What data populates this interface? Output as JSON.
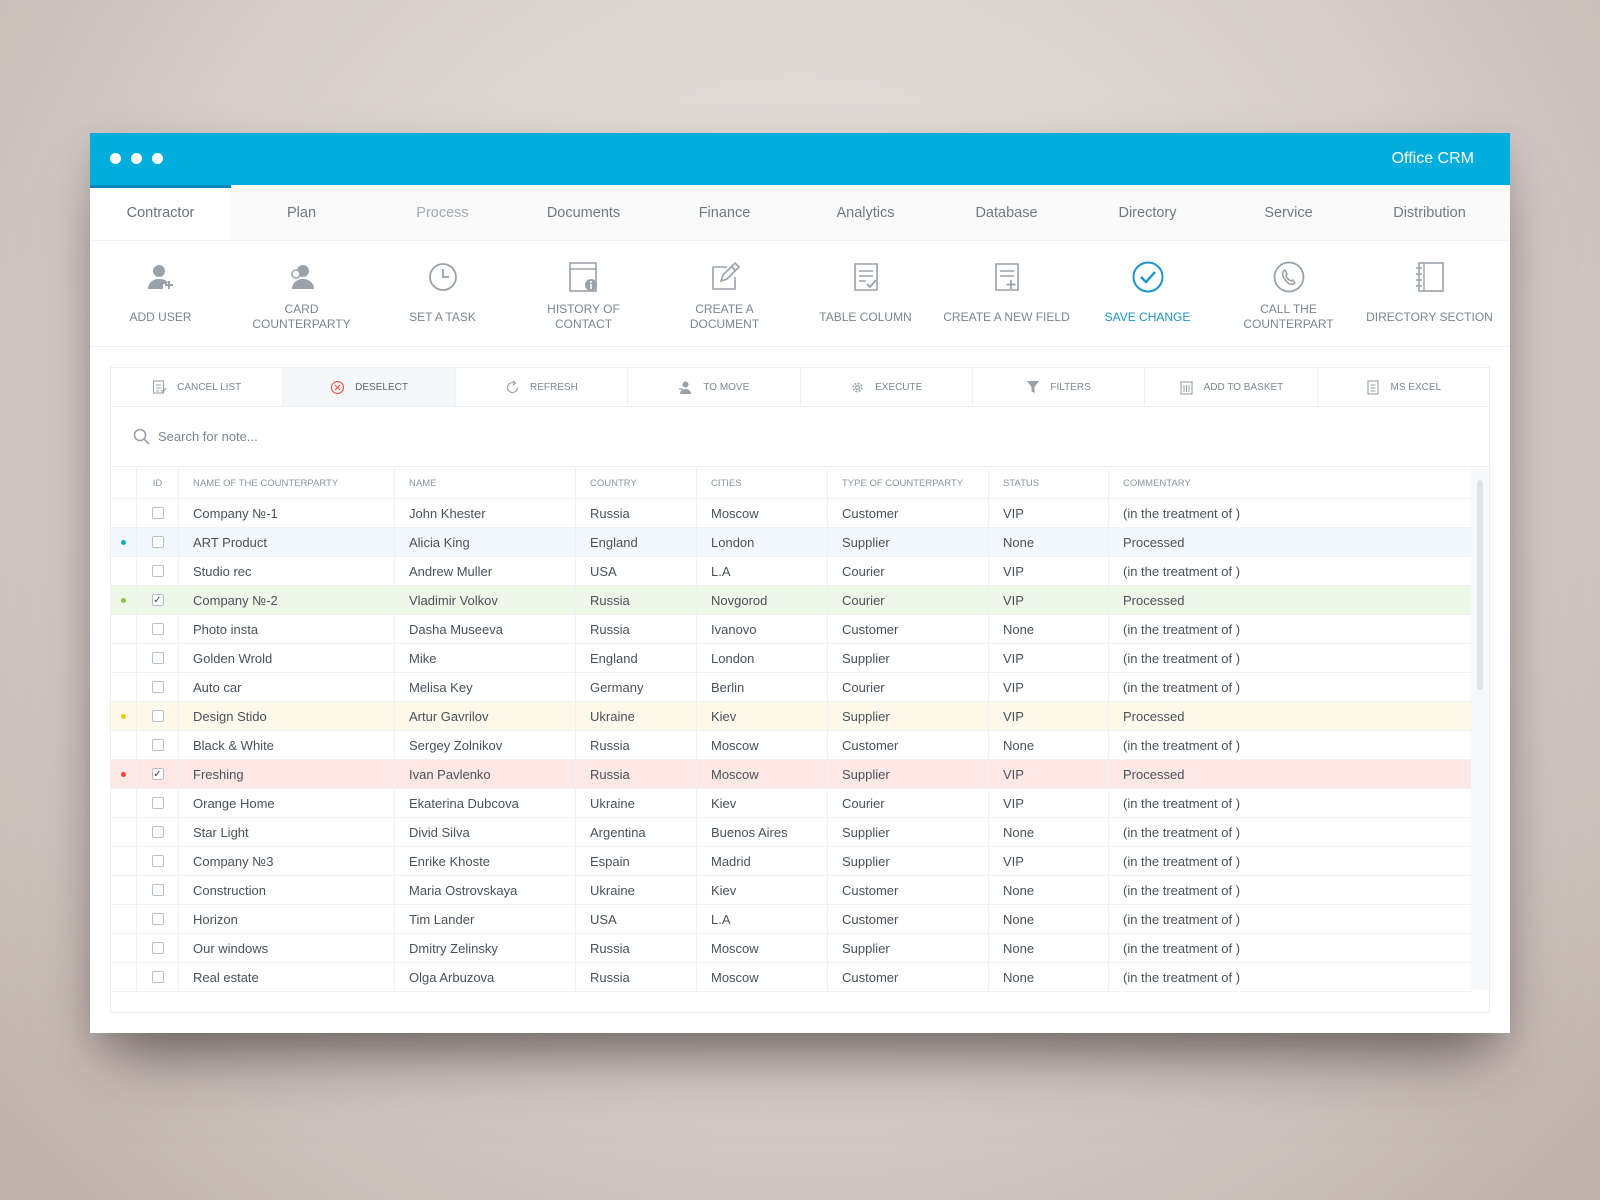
{
  "window": {
    "title": "Office CRM"
  },
  "tabs": [
    {
      "label": "Contractor",
      "state": "active"
    },
    {
      "label": "Plan",
      "state": "normal"
    },
    {
      "label": "Process",
      "state": "dim"
    },
    {
      "label": "Documents",
      "state": "normal"
    },
    {
      "label": "Finance",
      "state": "normal"
    },
    {
      "label": "Analytics",
      "state": "normal"
    },
    {
      "label": "Database",
      "state": "normal"
    },
    {
      "label": "Directory",
      "state": "normal"
    },
    {
      "label": "Service",
      "state": "normal"
    },
    {
      "label": "Distribution",
      "state": "normal"
    }
  ],
  "actions": [
    {
      "label": "ADD USER",
      "icon": "add-user-icon"
    },
    {
      "label": "CARD COUNTERPARTY",
      "icon": "counterparty-card-icon"
    },
    {
      "label": "SET A TASK",
      "icon": "clock-icon"
    },
    {
      "label": "HISTORY OF CONTACT",
      "icon": "contact-history-icon"
    },
    {
      "label": "CREATE A DOCUMENT",
      "icon": "edit-document-icon"
    },
    {
      "label": "TABLE COLUMN",
      "icon": "table-column-icon"
    },
    {
      "label": "CREATE A NEW FIELD",
      "icon": "new-field-icon"
    },
    {
      "label": "SAVE CHANGE",
      "icon": "check-circle-icon"
    },
    {
      "label": "CALL THE COUNTERPART",
      "icon": "phone-icon"
    },
    {
      "label": "DIRECTORY SECTION",
      "icon": "notebook-icon"
    }
  ],
  "accent_color": "#00aede",
  "toolbar": [
    {
      "label": "CANCEL LIST",
      "icon": "cancel-list-icon"
    },
    {
      "label": "DESELECT",
      "icon": "deselect-icon"
    },
    {
      "label": "REFRESH",
      "icon": "refresh-icon"
    },
    {
      "label": "TO MOVE",
      "icon": "move-icon"
    },
    {
      "label": "EXECUTE",
      "icon": "gear-icon"
    },
    {
      "label": "FILTERS",
      "icon": "filter-icon"
    },
    {
      "label": "ADD TO BASKET",
      "icon": "basket-icon"
    },
    {
      "label": "MS EXCEl",
      "icon": "excel-icon"
    }
  ],
  "search": {
    "placeholder": "Search for note..."
  },
  "table": {
    "columns": [
      "ID",
      "NAME OF THE COUNTERPARTY",
      "NAME",
      "COUNTRY",
      "CITIES",
      "TYPE OF COUNTERPARTY",
      "STATUS",
      "COMMENTARY"
    ],
    "rows": [
      {
        "name": "Company №-1",
        "person": "John Khester",
        "country": "Russia",
        "city": "Moscow",
        "type": "Customer",
        "status": "VIP",
        "comment": "(in the treatment of )",
        "checked": false,
        "highlight": ""
      },
      {
        "name": "ART Product",
        "person": "Alicia King",
        "country": "England",
        "city": "London",
        "type": "Supplier",
        "status": "None",
        "comment": "Processed",
        "checked": false,
        "highlight": "blue"
      },
      {
        "name": "Studio rec",
        "person": "Andrew Muller",
        "country": "USA",
        "city": "L.A",
        "type": "Courier",
        "status": "VIP",
        "comment": "(in the treatment of )",
        "checked": false,
        "highlight": ""
      },
      {
        "name": "Company №-2",
        "person": "Vladimir Volkov",
        "country": "Russia",
        "city": "Novgorod",
        "type": "Courier",
        "status": "VIP",
        "comment": "Processed",
        "checked": true,
        "highlight": "green"
      },
      {
        "name": "Photo insta",
        "person": "Dasha Museeva",
        "country": "Russia",
        "city": "Ivanovo",
        "type": "Customer",
        "status": "None",
        "comment": "(in the treatment of )",
        "checked": false,
        "highlight": ""
      },
      {
        "name": "Golden Wrold",
        "person": "Mike",
        "country": "England",
        "city": "London",
        "type": "Supplier",
        "status": "VIP",
        "comment": "(in the treatment of )",
        "checked": false,
        "highlight": ""
      },
      {
        "name": "Auto car",
        "person": "Melisa Key",
        "country": "Germany",
        "city": "Berlin",
        "type": "Courier",
        "status": "VIP",
        "comment": "(in the treatment of )",
        "checked": false,
        "highlight": ""
      },
      {
        "name": "Design Stido",
        "person": "Artur Gavrilov",
        "country": "Ukraine",
        "city": "Kiev",
        "type": "Supplier",
        "status": "VIP",
        "comment": "Processed",
        "checked": false,
        "highlight": "yellow"
      },
      {
        "name": "Black & White",
        "person": "Sergey Zolnikov",
        "country": "Russia",
        "city": "Moscow",
        "type": "Customer",
        "status": "None",
        "comment": "(in the treatment of )",
        "checked": false,
        "highlight": ""
      },
      {
        "name": "Freshing",
        "person": "Ivan Pavlenko",
        "country": "Russia",
        "city": "Moscow",
        "type": "Supplier",
        "status": "VIP",
        "comment": "Processed",
        "checked": true,
        "highlight": "red"
      },
      {
        "name": "Orange Home",
        "person": "Ekaterina Dubcova",
        "country": "Ukraine",
        "city": "Kiev",
        "type": "Courier",
        "status": "VIP",
        "comment": "(in the treatment of )",
        "checked": false,
        "highlight": ""
      },
      {
        "name": "Star Light",
        "person": "Divid Silva",
        "country": "Argentina",
        "city": "Buenos Aires",
        "type": "Supplier",
        "status": "None",
        "comment": "(in the treatment of )",
        "checked": false,
        "highlight": ""
      },
      {
        "name": "Company №3",
        "person": "Enrike Khoste",
        "country": "Espain",
        "city": "Madrid",
        "type": "Supplier",
        "status": "VIP",
        "comment": "(in the treatment of )",
        "checked": false,
        "highlight": ""
      },
      {
        "name": "Construction",
        "person": "Maria Ostrovskaya",
        "country": "Ukraine",
        "city": "Kiev",
        "type": "Customer",
        "status": "None",
        "comment": "(in the treatment of )",
        "checked": false,
        "highlight": ""
      },
      {
        "name": "Horizon",
        "person": "Tim Lander",
        "country": "USA",
        "city": "L.A",
        "type": "Customer",
        "status": "None",
        "comment": "(in the treatment of )",
        "checked": false,
        "highlight": ""
      },
      {
        "name": "Our windows",
        "person": "Dmitry Zelinsky",
        "country": "Russia",
        "city": "Moscow",
        "type": "Supplier",
        "status": "None",
        "comment": "(in the treatment of )",
        "checked": false,
        "highlight": ""
      },
      {
        "name": "Real estate",
        "person": "Olga Arbuzova",
        "country": "Russia",
        "city": "Moscow",
        "type": "Customer",
        "status": "None",
        "comment": "(in the treatment of )",
        "checked": false,
        "highlight": ""
      }
    ]
  },
  "highlight_colors": {
    "blue": {
      "row": "#f2f9fd",
      "dot": "#1aa3cc"
    },
    "green": {
      "row": "#eef8e8",
      "dot": "#8cc63f"
    },
    "yellow": {
      "row": "#fdf9ea",
      "dot": "#f5c518"
    },
    "red": {
      "row": "#fde8e6",
      "dot": "#ef4b3a"
    }
  }
}
